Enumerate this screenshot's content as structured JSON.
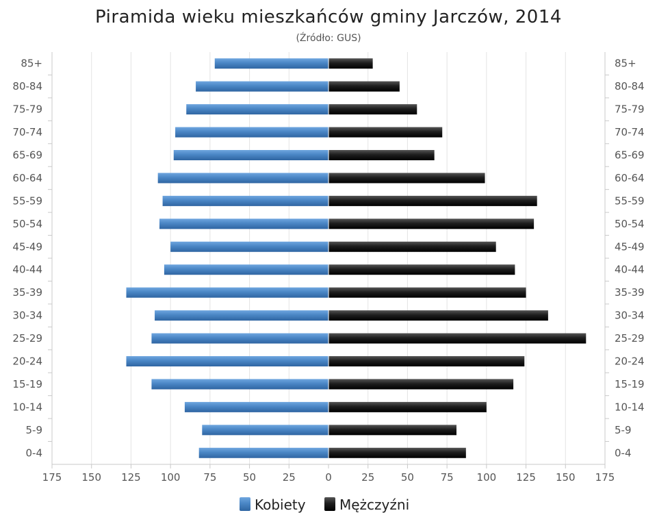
{
  "chart_data": {
    "type": "bar",
    "orientation": "horizontal-pyramid",
    "title": "Piramida wieku mieszkańców gminy Jarczów, 2014",
    "subtitle": "(Źródło: GUS)",
    "categories": [
      "85+",
      "80-84",
      "75-79",
      "70-74",
      "65-69",
      "60-64",
      "55-59",
      "50-54",
      "45-49",
      "40-44",
      "35-39",
      "30-34",
      "25-29",
      "20-24",
      "15-19",
      "10-14",
      "5-9",
      "0-4"
    ],
    "series": [
      {
        "name": "Kobiety",
        "color": "#4a86c5",
        "values": [
          72,
          84,
          90,
          97,
          98,
          108,
          105,
          107,
          100,
          104,
          128,
          110,
          112,
          128,
          112,
          91,
          80,
          82
        ]
      },
      {
        "name": "Mężczyźni",
        "color": "#1e1e1e",
        "values": [
          28,
          45,
          56,
          72,
          67,
          99,
          132,
          130,
          106,
          118,
          125,
          139,
          163,
          124,
          117,
          100,
          81,
          87
        ]
      }
    ],
    "xlim": [
      -175,
      175
    ],
    "x_ticks": [
      -175,
      -150,
      -125,
      -100,
      -75,
      -50,
      -25,
      0,
      25,
      50,
      75,
      100,
      125,
      150,
      175
    ],
    "x_tick_labels": [
      "175",
      "150",
      "125",
      "100",
      "75",
      "50",
      "25",
      "0",
      "25",
      "50",
      "75",
      "100",
      "125",
      "150",
      "175"
    ],
    "grid": true,
    "legend": "bottom"
  }
}
